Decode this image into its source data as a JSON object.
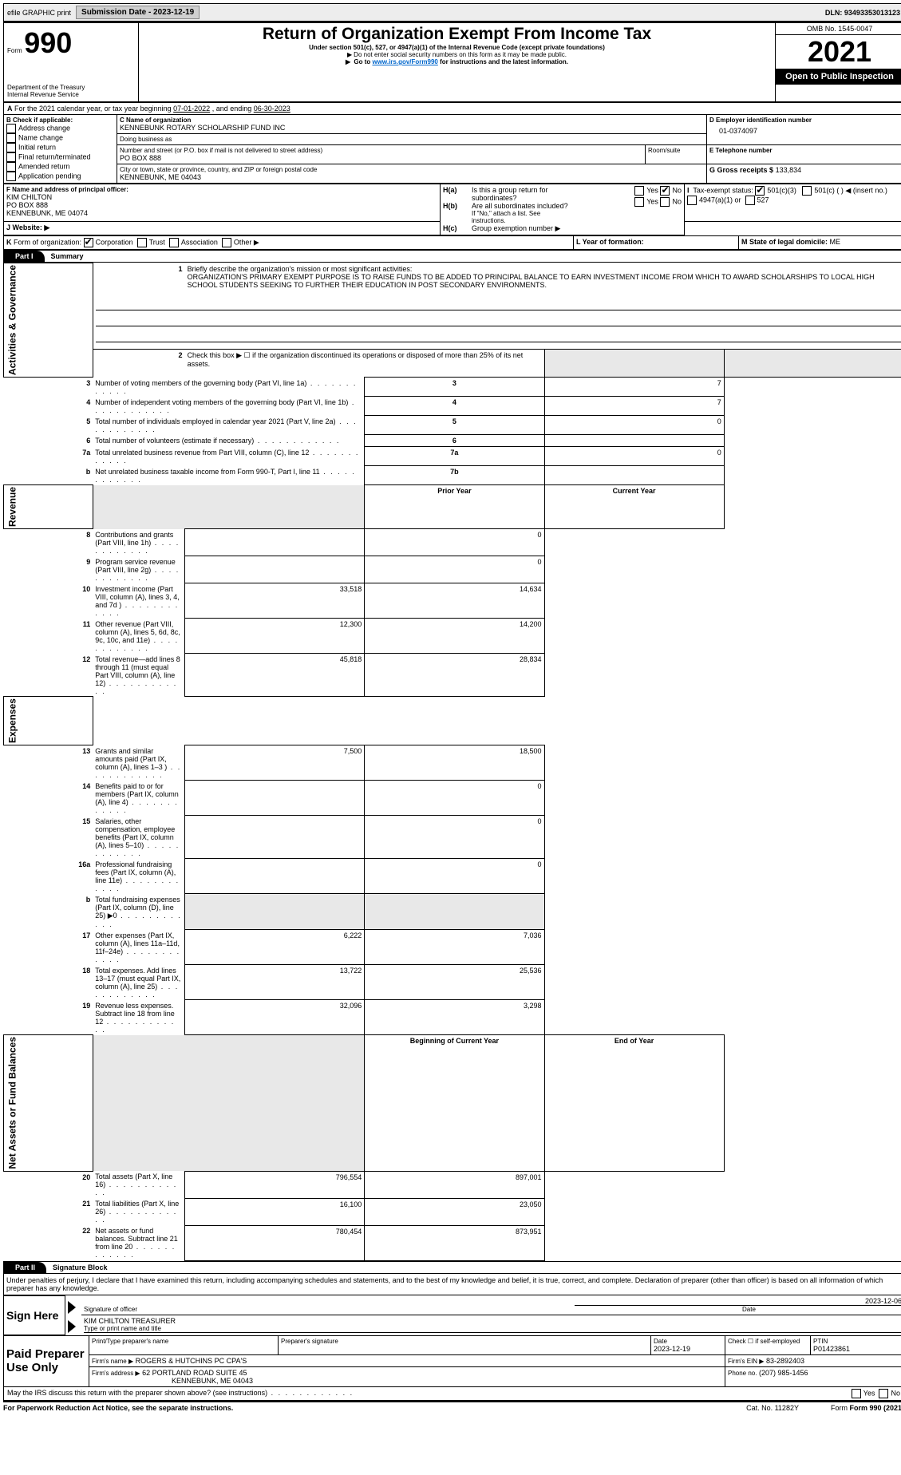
{
  "topbar": {
    "efile": "efile GRAPHIC print",
    "submission_label": "Submission Date - 2023-12-19",
    "dln": "DLN: 93493353013123"
  },
  "header": {
    "form_word": "Form",
    "form_num": "990",
    "title": "Return of Organization Exempt From Income Tax",
    "subtitle": "Under section 501(c), 527, or 4947(a)(1) of the Internal Revenue Code (except private foundations)",
    "note1": "Do not enter social security numbers on this form as it may be made public.",
    "note2_pre": "Go to ",
    "note2_link": "www.irs.gov/Form990",
    "note2_post": " for instructions and the latest information.",
    "dept": "Department of the Treasury",
    "irs": "Internal Revenue Service",
    "omb": "OMB No. 1545-0047",
    "year": "2021",
    "open": "Open to Public Inspection"
  },
  "A": {
    "text": "For the 2021 calendar year, or tax year beginning ",
    "begin": "07-01-2022",
    "mid": " , and ending ",
    "end": "06-30-2023"
  },
  "B": {
    "label": "B Check if applicable:",
    "items": [
      "Address change",
      "Name change",
      "Initial return",
      "Final return/terminated",
      "Amended return",
      "Application pending"
    ]
  },
  "C": {
    "name_label": "C Name of organization",
    "name": "KENNEBUNK ROTARY SCHOLARSHIP FUND INC",
    "dba_label": "Doing business as",
    "dba": "",
    "addr_label": "Number and street (or P.O. box if mail is not delivered to street address)",
    "room_label": "Room/suite",
    "addr": "PO BOX 888",
    "city_label": "City or town, state or province, country, and ZIP or foreign postal code",
    "city": "KENNEBUNK, ME  04043"
  },
  "D": {
    "label": "D Employer identification number",
    "val": "01-0374097"
  },
  "E": {
    "label": "E Telephone number",
    "val": ""
  },
  "G": {
    "label": "G Gross receipts $",
    "val": "133,834"
  },
  "F": {
    "label": "F Name and address of principal officer:",
    "name": "KIM CHILTON",
    "addr1": "PO BOX 888",
    "addr2": "KENNEBUNK, ME  04074"
  },
  "H": {
    "a": "Is this a group return for subordinates?",
    "b": "Are all subordinates included?",
    "b_note": "If \"No,\" attach a list. See instructions.",
    "c": "Group exemption number ▶",
    "yes": "Yes",
    "no": "No",
    "ha_label": "H(a)",
    "hb_label": "H(b)",
    "hc_label": "H(c)"
  },
  "I": {
    "label": "Tax-exempt status:",
    "opts": [
      "501(c)(3)",
      "501(c) (  ) ◀ (insert no.)",
      "4947(a)(1) or",
      "527"
    ],
    "letter": "I"
  },
  "J": {
    "label": "Website: ▶",
    "letter": "J"
  },
  "K": {
    "label": "Form of organization:",
    "opts": [
      "Corporation",
      "Trust",
      "Association",
      "Other ▶"
    ],
    "letter": "K"
  },
  "L": {
    "label": "L Year of formation:",
    "val": ""
  },
  "M": {
    "label": "M State of legal domicile:",
    "val": "ME"
  },
  "part1": {
    "label": "Part I",
    "title": "Summary"
  },
  "sidetabs": {
    "gov": "Activities & Governance",
    "rev": "Revenue",
    "exp": "Expenses",
    "net": "Net Assets or Fund Balances"
  },
  "summary": {
    "l1_label": "Briefly describe the organization's mission or most significant activities:",
    "l1_text": "ORGANIZATION'S PRIMARY EXEMPT PURPOSE IS TO RAISE FUNDS TO BE ADDED TO PRINCIPAL BALANCE TO EARN INVESTMENT INCOME FROM WHICH TO AWARD SCHOLARSHIPS TO LOCAL HIGH SCHOOL STUDENTS SEEKING TO FURTHER THEIR EDUCATION IN POST SECONDARY ENVIRONMENTS.",
    "l2": "Check this box ▶ ☐ if the organization discontinued its operations or disposed of more than 25% of its net assets.",
    "rows_gv": [
      {
        "n": "3",
        "t": "Number of voting members of the governing body (Part VI, line 1a)",
        "box": "3",
        "v": "7"
      },
      {
        "n": "4",
        "t": "Number of independent voting members of the governing body (Part VI, line 1b)",
        "box": "4",
        "v": "7"
      },
      {
        "n": "5",
        "t": "Total number of individuals employed in calendar year 2021 (Part V, line 2a)",
        "box": "5",
        "v": "0"
      },
      {
        "n": "6",
        "t": "Total number of volunteers (estimate if necessary)",
        "box": "6",
        "v": ""
      },
      {
        "n": "7a",
        "t": "Total unrelated business revenue from Part VIII, column (C), line 12",
        "box": "7a",
        "v": "0"
      },
      {
        "n": "b",
        "t": "Net unrelated business taxable income from Form 990-T, Part I, line 11",
        "box": "7b",
        "v": ""
      }
    ],
    "prior": "Prior Year",
    "current": "Current Year",
    "rows_rev": [
      {
        "n": "8",
        "t": "Contributions and grants (Part VIII, line 1h)",
        "p": "",
        "c": "0"
      },
      {
        "n": "9",
        "t": "Program service revenue (Part VIII, line 2g)",
        "p": "",
        "c": "0"
      },
      {
        "n": "10",
        "t": "Investment income (Part VIII, column (A), lines 3, 4, and 7d )",
        "p": "33,518",
        "c": "14,634"
      },
      {
        "n": "11",
        "t": "Other revenue (Part VIII, column (A), lines 5, 6d, 8c, 9c, 10c, and 11e)",
        "p": "12,300",
        "c": "14,200"
      },
      {
        "n": "12",
        "t": "Total revenue—add lines 8 through 11 (must equal Part VIII, column (A), line 12)",
        "p": "45,818",
        "c": "28,834"
      }
    ],
    "rows_exp": [
      {
        "n": "13",
        "t": "Grants and similar amounts paid (Part IX, column (A), lines 1–3 )",
        "p": "7,500",
        "c": "18,500"
      },
      {
        "n": "14",
        "t": "Benefits paid to or for members (Part IX, column (A), line 4)",
        "p": "",
        "c": "0"
      },
      {
        "n": "15",
        "t": "Salaries, other compensation, employee benefits (Part IX, column (A), lines 5–10)",
        "p": "",
        "c": "0"
      },
      {
        "n": "16a",
        "t": "Professional fundraising fees (Part IX, column (A), line 11e)",
        "p": "",
        "c": "0"
      },
      {
        "n": "b",
        "t": "Total fundraising expenses (Part IX, column (D), line 25) ▶0",
        "p": "GREY",
        "c": "GREY"
      },
      {
        "n": "17",
        "t": "Other expenses (Part IX, column (A), lines 11a–11d, 11f–24e)",
        "p": "6,222",
        "c": "7,036"
      },
      {
        "n": "18",
        "t": "Total expenses. Add lines 13–17 (must equal Part IX, column (A), line 25)",
        "p": "13,722",
        "c": "25,536"
      },
      {
        "n": "19",
        "t": "Revenue less expenses. Subtract line 18 from line 12",
        "p": "32,096",
        "c": "3,298"
      }
    ],
    "beg": "Beginning of Current Year",
    "end": "End of Year",
    "rows_net": [
      {
        "n": "20",
        "t": "Total assets (Part X, line 16)",
        "p": "796,554",
        "c": "897,001"
      },
      {
        "n": "21",
        "t": "Total liabilities (Part X, line 26)",
        "p": "16,100",
        "c": "23,050"
      },
      {
        "n": "22",
        "t": "Net assets or fund balances. Subtract line 21 from line 20",
        "p": "780,454",
        "c": "873,951"
      }
    ]
  },
  "part2": {
    "label": "Part II",
    "title": "Signature Block"
  },
  "sig": {
    "penalties": "Under penalties of perjury, I declare that I have examined this return, including accompanying schedules and statements, and to the best of my knowledge and belief, it is true, correct, and complete. Declaration of preparer (other than officer) is based on all information of which preparer has any knowledge.",
    "sign_here": "Sign Here",
    "sig_officer": "Signature of officer",
    "date": "Date",
    "sig_date": "2023-12-06",
    "name_title": "KIM CHILTON  TREASURER",
    "type_name": "Type or print name and title",
    "paid": "Paid Preparer Use Only",
    "pt_name_h": "Print/Type preparer's name",
    "pt_sig_h": "Preparer's signature",
    "pt_date_h": "Date",
    "pt_date": "2023-12-19",
    "pt_check": "Check ☐ if self-employed",
    "ptin_h": "PTIN",
    "ptin": "P01423861",
    "firm_name_l": "Firm's name    ▶",
    "firm_name": "ROGERS & HUTCHINS PC CPA'S",
    "firm_ein_l": "Firm's EIN ▶",
    "firm_ein": "83-2892403",
    "firm_addr_l": "Firm's address ▶",
    "firm_addr1": "62 PORTLAND ROAD SUITE 45",
    "firm_addr2": "KENNEBUNK, ME  04043",
    "phone_l": "Phone no.",
    "phone": "(207) 985-1456",
    "may_irs": "May the IRS discuss this return with the preparer shown above? (see instructions)"
  },
  "footer": {
    "pra": "For Paperwork Reduction Act Notice, see the separate instructions.",
    "cat": "Cat. No. 11282Y",
    "form": "Form 990 (2021)"
  }
}
